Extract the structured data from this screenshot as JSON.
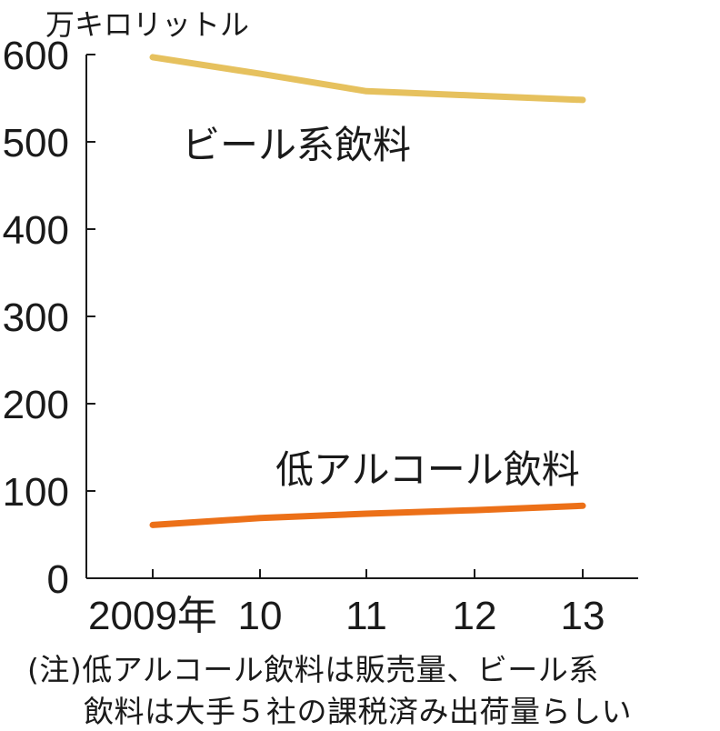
{
  "unit_label": "万キロリットル",
  "notes": [
    "(注)低アルコール飲料は販売量、ビール系",
    "飲料は大手５社の課税済み出荷量らしい"
  ],
  "chart_data": {
    "type": "line",
    "title": "",
    "xlabel": "",
    "ylabel": "万キロリットル",
    "ylim": [
      0,
      600
    ],
    "yticks": [
      0,
      100,
      200,
      300,
      400,
      500,
      600
    ],
    "categories": [
      "2009年",
      "10",
      "11",
      "12",
      "13"
    ],
    "series": [
      {
        "name": "ビール系飲料",
        "color": "#e6c15e",
        "values": [
          597,
          578,
          558,
          553,
          548
        ]
      },
      {
        "name": "低アルコール飲料",
        "color": "#ec7018",
        "values": [
          61,
          69,
          74,
          78,
          83
        ]
      }
    ],
    "grid": false,
    "legend": "inline-labels"
  }
}
